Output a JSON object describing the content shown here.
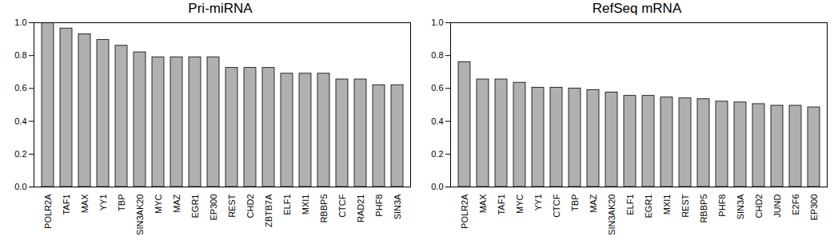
{
  "chart_data": [
    {
      "type": "bar",
      "title": "Pri-miRNA",
      "categories": [
        "POLR2A",
        "TAF1",
        "MAX",
        "YY1",
        "TBP",
        "SIN3AK20",
        "MYC",
        "MAZ",
        "EGR1",
        "EP300",
        "REST",
        "CHD2",
        "ZBTB7A",
        "ELF1",
        "MXI1",
        "RBBP5",
        "CTCF",
        "RAD21",
        "PHF8",
        "SIN3A"
      ],
      "values": [
        1.0,
        0.965,
        0.93,
        0.895,
        0.86,
        0.82,
        0.79,
        0.79,
        0.79,
        0.79,
        0.725,
        0.725,
        0.725,
        0.69,
        0.69,
        0.69,
        0.655,
        0.655,
        0.62,
        0.62
      ],
      "color": "#b0b0b0",
      "ylim": [
        0,
        1
      ],
      "yticks": [
        {
          "value": 0,
          "label": "0.0"
        },
        0.2,
        0.4,
        0.6,
        0.8,
        {
          "value": 1,
          "label": "1.0"
        }
      ]
    },
    {
      "type": "bar",
      "title": "RefSeq mRNA",
      "categories": [
        "POLR2A",
        "MAX",
        "TAF1",
        "MYC",
        "YY1",
        "CTCF",
        "TBP",
        "MAZ",
        "SIN3AK20",
        "ELF1",
        "EGR1",
        "MXI1",
        "REST",
        "RBBP5",
        "PHF8",
        "SIN3A",
        "CHD2",
        "JUND",
        "E2F6",
        "EP300"
      ],
      "values": [
        0.76,
        0.655,
        0.655,
        0.635,
        0.605,
        0.605,
        0.6,
        0.59,
        0.575,
        0.555,
        0.555,
        0.545,
        0.54,
        0.535,
        0.52,
        0.515,
        0.505,
        0.495,
        0.495,
        0.485
      ],
      "color": "#b0b0b0",
      "ylim": [
        0,
        1
      ],
      "yticks": [
        {
          "value": 0,
          "label": "0.0"
        },
        0.2,
        0.4,
        0.6,
        0.8,
        {
          "value": 1,
          "label": "1.0"
        }
      ]
    }
  ]
}
